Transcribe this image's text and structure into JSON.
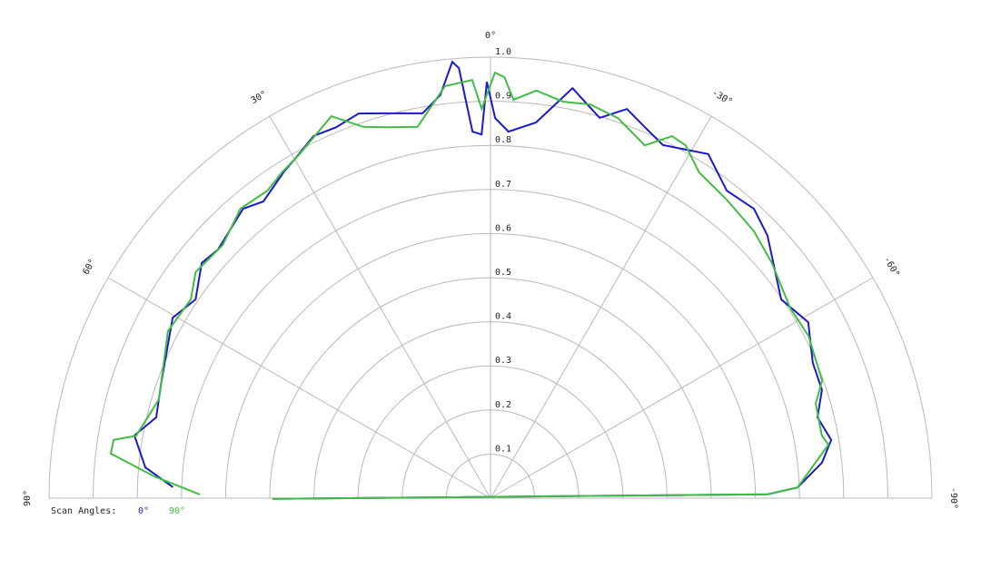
{
  "chart_data": {
    "type": "polar",
    "rlim": [
      0,
      1
    ],
    "rticks": [
      0.1,
      0.2,
      0.3,
      0.4,
      0.5,
      0.6,
      0.7,
      0.8,
      0.9,
      {
        "value": 1,
        "label": "1.0"
      }
    ],
    "thetaticks": [
      {
        "value": 0,
        "label": "0°"
      },
      {
        "value": 30,
        "label": "30°"
      },
      {
        "value": 60,
        "label": "60°"
      },
      {
        "value": 90,
        "label": "90°"
      },
      {
        "value": -30,
        "label": "-30°"
      },
      {
        "value": -60,
        "label": "-60°"
      },
      {
        "value": -90,
        "label": "-90°"
      }
    ],
    "grid": true,
    "legend_title": "Scan Angles:",
    "series": [
      {
        "name": "0°",
        "color": "#1a1ac8",
        "theta": [
          88.0,
          84.9,
          80.0,
          76.4,
          70.4,
          60.4,
          56.0,
          50.8,
          47.6,
          40.5,
          37.4,
          32.4,
          29.9,
          26.0,
          22.6,
          18.9,
          15.8,
          10.0,
          7.1,
          5.0,
          4.2,
          2.8,
          1.4,
          0.5,
          -0.7,
          -2.8,
          -6.9,
          -11.3,
          -16.0,
          -19.3,
          -22.6,
          -26.0,
          -32.3,
          -37.5,
          -42.3,
          -46.5,
          -55.6,
          -61.0,
          -67.2,
          -71.9,
          -76.1,
          -80.3,
          -83.9,
          -88.0,
          -89.2,
          90.2
        ],
        "values": [
          0.72,
          0.785,
          0.819,
          0.779,
          0.791,
          0.828,
          0.806,
          0.844,
          0.836,
          0.863,
          0.847,
          0.875,
          0.888,
          0.914,
          0.911,
          0.922,
          0.907,
          0.886,
          0.921,
          0.993,
          0.978,
          0.832,
          0.825,
          0.944,
          0.862,
          0.832,
          0.858,
          0.948,
          0.897,
          0.935,
          0.911,
          0.891,
          0.923,
          0.879,
          0.887,
          0.865,
          0.798,
          0.823,
          0.792,
          0.79,
          0.763,
          0.783,
          0.755,
          0.696,
          0.628,
          0.494
        ]
      },
      {
        "name": "90°",
        "color": "#44bb44",
        "theta": [
          89.3,
          86.3,
          83.3,
          81.2,
          80.0,
          73.4,
          62.6,
          56.4,
          52.5,
          46.6,
          40.8,
          35.9,
          32.6,
          29.0,
          22.6,
          18.9,
          15.1,
          11.1,
          6.3,
          2.5,
          1.3,
          -0.6,
          -1.9,
          -3.3,
          -6.4,
          -10.4,
          -14.2,
          -18.5,
          -23.6,
          -26.6,
          -28.9,
          -32.6,
          -38.3,
          -44.6,
          -50.1,
          -57.7,
          -62.9,
          -70.5,
          -73.8,
          -79.3,
          -81.0,
          -88.0,
          -89.2,
          90.2
        ],
        "values": [
          0.658,
          0.763,
          0.866,
          0.864,
          0.815,
          0.784,
          0.823,
          0.815,
          0.842,
          0.835,
          0.867,
          0.861,
          0.877,
          0.892,
          0.938,
          0.89,
          0.871,
          0.858,
          0.94,
          0.949,
          0.883,
          0.965,
          0.955,
          0.905,
          0.93,
          0.914,
          0.921,
          0.909,
          0.873,
          0.918,
          0.914,
          0.877,
          0.863,
          0.85,
          0.831,
          0.804,
          0.809,
          0.797,
          0.767,
          0.764,
          0.775,
          0.696,
          0.628,
          0.494
        ]
      }
    ]
  }
}
